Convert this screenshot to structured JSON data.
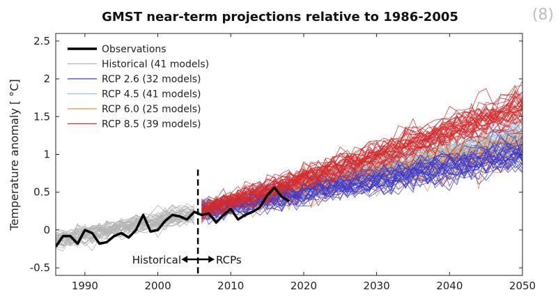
{
  "chart_data": {
    "type": "line",
    "title": "GMST near-term projections relative to 1986-2005",
    "panel_label": "(8)",
    "ylabel": "Temperature anomaly  [ °C]",
    "xlabel": "",
    "xlim": [
      1986,
      2050
    ],
    "ylim": [
      -0.6,
      2.6
    ],
    "x_ticks": [
      1990,
      2000,
      2010,
      2020,
      2030,
      2040,
      2050
    ],
    "x_tick_labels": [
      "1990",
      "2000",
      "2010",
      "2020",
      "2030",
      "2040",
      "2050"
    ],
    "y_ticks": [
      -0.5,
      0,
      0.5,
      1,
      1.5,
      2,
      2.5
    ],
    "y_tick_labels": [
      "-0.5",
      "0",
      "0.5",
      "1",
      "1.5",
      "2",
      "2.5"
    ],
    "grid": false,
    "legend_position": "top-left",
    "divider_year": 2005.5,
    "annotation_left": "Historical",
    "annotation_right": "RCPs",
    "series": [
      {
        "name": "Observations",
        "color": "#000000",
        "x": [
          1986,
          1987,
          1988,
          1989,
          1990,
          1991,
          1992,
          1993,
          1994,
          1995,
          1996,
          1997,
          1998,
          1999,
          2000,
          2001,
          2002,
          2003,
          2004,
          2005,
          2006,
          2007,
          2008,
          2009,
          2010,
          2011,
          2012,
          2013,
          2014,
          2015,
          2016,
          2017,
          2018
        ],
        "values": [
          -0.22,
          -0.08,
          -0.08,
          -0.18,
          0.0,
          -0.04,
          -0.18,
          -0.16,
          -0.08,
          -0.04,
          -0.1,
          0.0,
          0.2,
          -0.02,
          0.0,
          0.12,
          0.2,
          0.18,
          0.14,
          0.24,
          0.2,
          0.22,
          0.1,
          0.2,
          0.28,
          0.14,
          0.2,
          0.24,
          0.3,
          0.46,
          0.56,
          0.44,
          0.38
        ]
      },
      {
        "name": "Historical (41 models)",
        "color": "#b4b4b4",
        "model_count": 41,
        "x_range": [
          1986,
          2005
        ],
        "mean_start": -0.15,
        "mean_end": 0.22
      },
      {
        "name": "RCP 2.6 (32 models)",
        "color": "#3a3ad0",
        "model_count": 32,
        "x_range": [
          2006,
          2050
        ],
        "mean_start": 0.26,
        "mean_end": 1.0
      },
      {
        "name": "RCP 4.5 (41 models)",
        "color": "#8fbfe6",
        "model_count": 41,
        "x_range": [
          2006,
          2050
        ],
        "mean_start": 0.26,
        "mean_end": 1.25
      },
      {
        "name": "RCP 6.0 (25 models)",
        "color": "#f0903a",
        "model_count": 25,
        "x_range": [
          2006,
          2050
        ],
        "mean_start": 0.26,
        "mean_end": 1.15
      },
      {
        "name": "RCP 8.5 (39 models)",
        "color": "#d62a2a",
        "model_count": 39,
        "x_range": [
          2006,
          2050
        ],
        "mean_start": 0.26,
        "mean_end": 1.6
      }
    ]
  }
}
